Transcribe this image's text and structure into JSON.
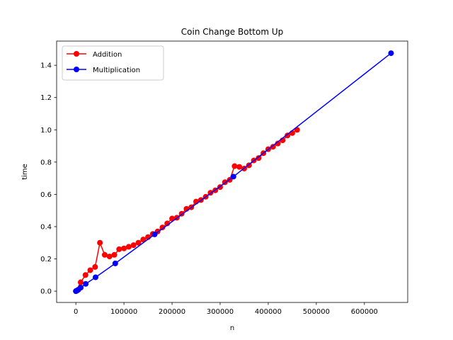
{
  "chart_data": {
    "type": "line",
    "title": "Coin Change Bottom Up",
    "xlabel": "n",
    "ylabel": "time",
    "xlim": [
      -40000,
      690000
    ],
    "ylim": [
      -0.07,
      1.55
    ],
    "xticks": [
      0,
      100000,
      200000,
      300000,
      400000,
      500000,
      600000
    ],
    "yticks": [
      0.0,
      0.2,
      0.4,
      0.6,
      0.8,
      1.0,
      1.2,
      1.4
    ],
    "xtick_labels": [
      "0",
      "100000",
      "200000",
      "300000",
      "400000",
      "500000",
      "600000"
    ],
    "ytick_labels": [
      "0.0",
      "0.2",
      "0.4",
      "0.6",
      "0.8",
      "1.0",
      "1.2",
      "1.4"
    ],
    "grid": false,
    "legend_position": "top-left",
    "series": [
      {
        "name": "Addition",
        "color": "#ff0000",
        "x": [
          0,
          10000,
          20000,
          30000,
          40000,
          50000,
          60000,
          70000,
          80000,
          90000,
          100000,
          110000,
          120000,
          130000,
          140000,
          150000,
          160000,
          170000,
          180000,
          190000,
          200000,
          210000,
          220000,
          230000,
          240000,
          250000,
          260000,
          270000,
          280000,
          290000,
          300000,
          310000,
          320000,
          330000,
          340000,
          350000,
          360000,
          370000,
          380000,
          390000,
          400000,
          410000,
          420000,
          430000,
          440000,
          450000,
          460000
        ],
        "y": [
          0.0,
          0.055,
          0.1,
          0.13,
          0.15,
          0.3,
          0.225,
          0.215,
          0.225,
          0.26,
          0.265,
          0.275,
          0.285,
          0.3,
          0.32,
          0.335,
          0.355,
          0.37,
          0.395,
          0.42,
          0.45,
          0.455,
          0.48,
          0.51,
          0.52,
          0.555,
          0.565,
          0.585,
          0.61,
          0.625,
          0.645,
          0.675,
          0.69,
          0.775,
          0.77,
          0.76,
          0.78,
          0.81,
          0.825,
          0.855,
          0.88,
          0.895,
          0.915,
          0.935,
          0.965,
          0.98,
          1.0
        ]
      },
      {
        "name": "Multiplication",
        "color": "#0000ff",
        "x": [
          0,
          1280,
          2560,
          5120,
          10240,
          20480,
          40960,
          81920,
          163840,
          327680,
          655360
        ],
        "y": [
          0.0,
          0.002,
          0.004,
          0.009,
          0.022,
          0.045,
          0.086,
          0.172,
          0.352,
          0.71,
          1.475
        ]
      }
    ]
  }
}
